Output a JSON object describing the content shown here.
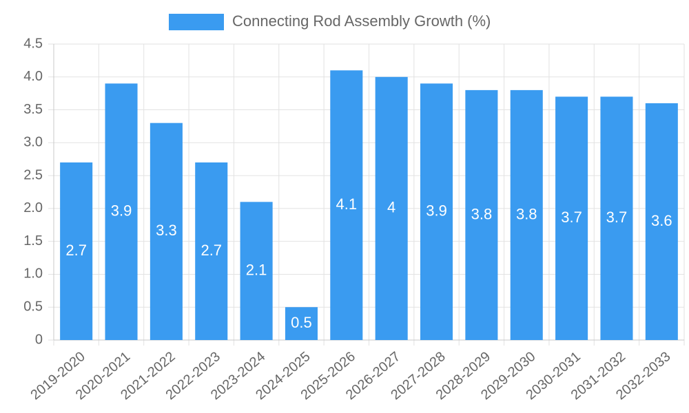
{
  "chart_data": {
    "type": "bar",
    "categories": [
      "2019-2020",
      "2020-2021",
      "2021-2022",
      "2022-2023",
      "2023-2024",
      "2024-2025",
      "2025-2026",
      "2026-2027",
      "2027-2028",
      "2028-2029",
      "2029-2030",
      "2030-2031",
      "2031-2032",
      "2032-2033"
    ],
    "series": [
      {
        "name": "Connecting Rod Assembly Growth (%)",
        "values": [
          2.7,
          3.9,
          3.3,
          2.7,
          2.1,
          0.5,
          4.1,
          4,
          3.9,
          3.8,
          3.8,
          3.7,
          3.7,
          3.6
        ],
        "data_labels": [
          "2.7",
          "3.9",
          "3.3",
          "2.7",
          "2.1",
          "0.5",
          "4.1",
          "4",
          "3.9",
          "3.8",
          "3.8",
          "3.7",
          "3.7",
          "3.6"
        ],
        "color": "#3a9bf0"
      }
    ],
    "yticks": [
      "0",
      "0.5",
      "1.0",
      "1.5",
      "2.0",
      "2.5",
      "3.0",
      "3.5",
      "4.0",
      "4.5"
    ],
    "ylim": [
      0,
      4.5
    ],
    "grid": true,
    "legend": "top-center",
    "title": "",
    "xlabel": "",
    "ylabel": ""
  }
}
